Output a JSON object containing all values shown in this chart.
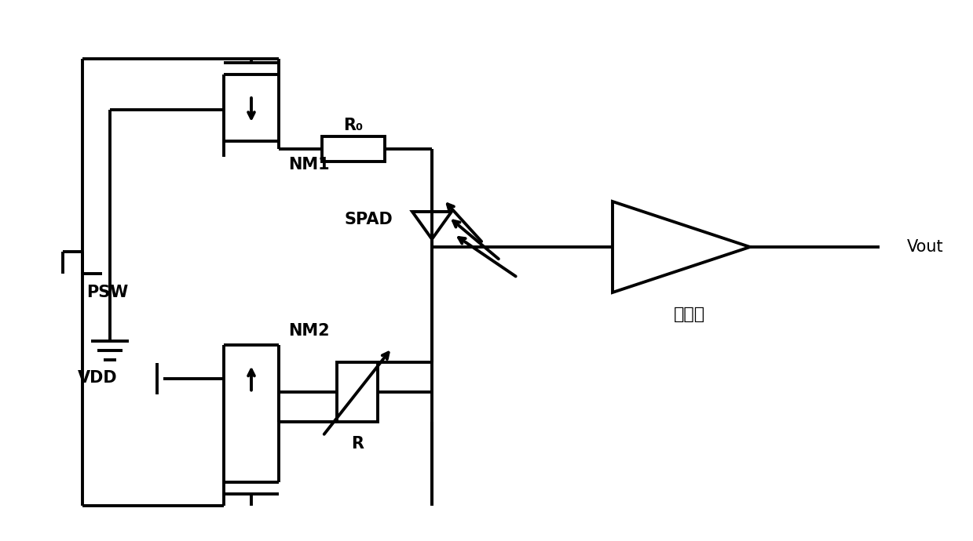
{
  "bg_color": "#ffffff",
  "line_color": "#000000",
  "lw": 2.8,
  "labels": {
    "nm1": "NM1",
    "nm2": "NM2",
    "r0": "R₀",
    "r": "R",
    "spad": "SPAD",
    "amp": "放大器",
    "psw": "PSW",
    "vdd": "VDD",
    "vout": "Vout"
  },
  "fs": 15
}
